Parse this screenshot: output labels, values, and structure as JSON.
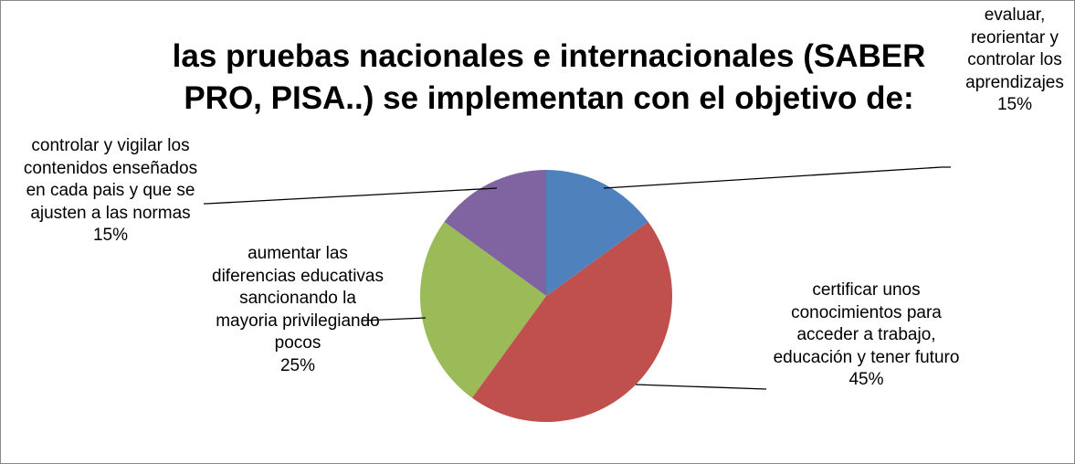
{
  "chart_data": {
    "type": "pie",
    "title": "las pruebas nacionales e internacionales (SABER PRO, PISA..) se implementan con el objetivo de:",
    "categories": [
      "evaluar, reorientar y controlar los aprendizajes",
      "certificar unos conocimientos para acceder a trabajo, educación y  tener futuro",
      "aumentar las diferencias educativas sancionando la mayoria privilegiando pocos",
      "controlar y vigilar los contenidos enseñados en cada pais y que se ajusten a las normas"
    ],
    "values": [
      15,
      45,
      25,
      15
    ],
    "value_labels": [
      "15%",
      "45%",
      "25%",
      "15%"
    ],
    "colors": [
      "#4f81bd",
      "#c0504d",
      "#9bbb59",
      "#8064a2"
    ]
  }
}
